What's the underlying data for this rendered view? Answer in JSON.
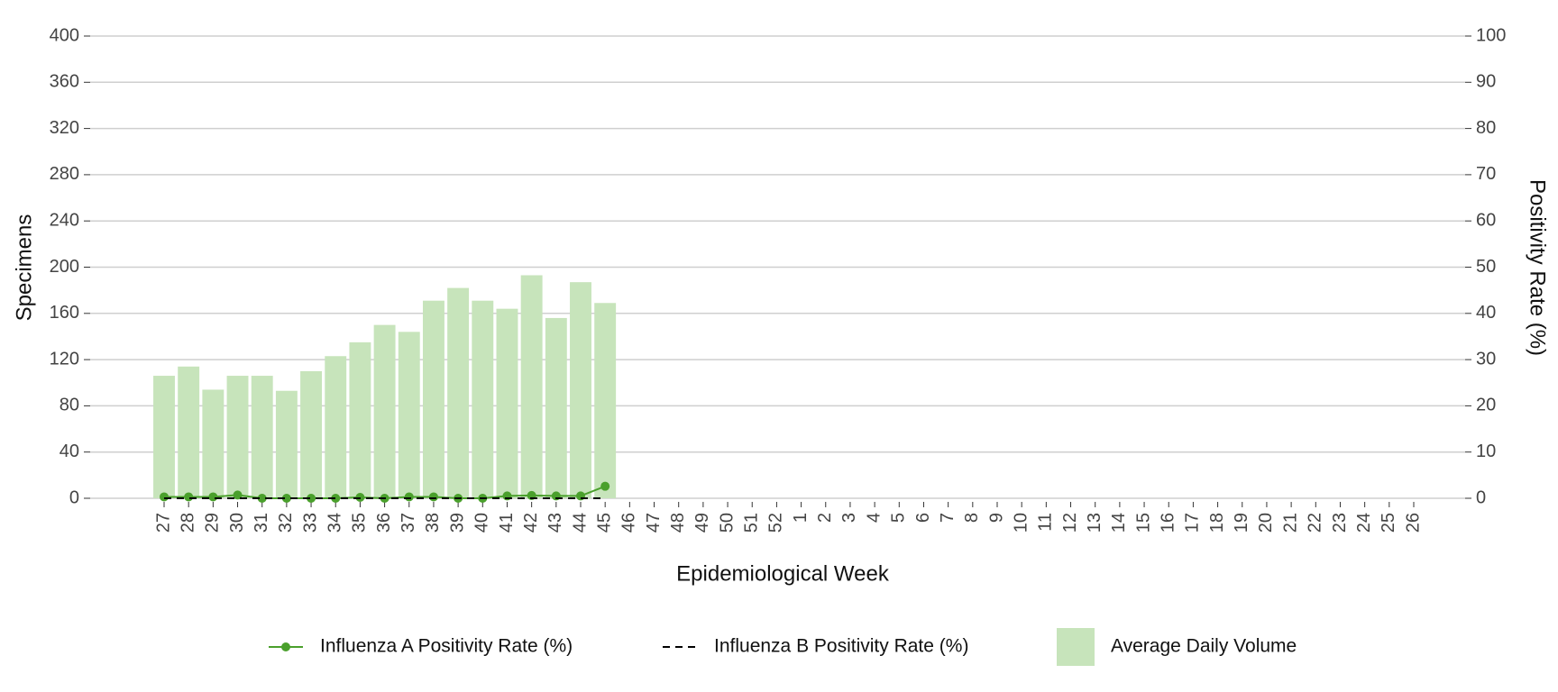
{
  "chart_data": {
    "type": "bar",
    "x_label": "Epidemiological Week",
    "y_label": "Specimens",
    "y2_label": "Positivity Rate (%)",
    "categories": [
      "27",
      "28",
      "29",
      "30",
      "31",
      "32",
      "33",
      "34",
      "35",
      "36",
      "37",
      "38",
      "39",
      "40",
      "41",
      "42",
      "43",
      "44",
      "45",
      "46",
      "47",
      "48",
      "49",
      "50",
      "51",
      "52",
      "1",
      "2",
      "3",
      "4",
      "5",
      "6",
      "7",
      "8",
      "9",
      "10",
      "11",
      "12",
      "13",
      "14",
      "15",
      "16",
      "17",
      "18",
      "19",
      "20",
      "21",
      "22",
      "23",
      "24",
      "25",
      "26"
    ],
    "series": [
      {
        "name": "Influenza A Positivity Rate (%)",
        "type": "line",
        "axis": "y2",
        "color": "#4aa02c",
        "markers": true,
        "values": [
          0.3,
          0.3,
          0.3,
          0.7,
          0,
          0,
          0,
          0,
          0.2,
          0,
          0.3,
          0.3,
          0,
          0,
          0.5,
          0.6,
          0.5,
          0.5,
          2.6,
          null,
          null,
          null,
          null,
          null,
          null,
          null,
          null,
          null,
          null,
          null,
          null,
          null,
          null,
          null,
          null,
          null,
          null,
          null,
          null,
          null,
          null,
          null,
          null,
          null,
          null,
          null,
          null,
          null,
          null,
          null,
          null,
          null
        ]
      },
      {
        "name": "Influenza B Positivity Rate (%)",
        "type": "line",
        "axis": "y2",
        "color": "#000000",
        "dashed": true,
        "values": [
          0,
          0,
          0,
          0,
          0,
          0,
          0,
          0,
          0,
          0,
          0,
          0,
          0,
          0,
          0,
          0,
          0,
          0,
          0,
          null,
          null,
          null,
          null,
          null,
          null,
          null,
          null,
          null,
          null,
          null,
          null,
          null,
          null,
          null,
          null,
          null,
          null,
          null,
          null,
          null,
          null,
          null,
          null,
          null,
          null,
          null,
          null,
          null,
          null,
          null,
          null,
          null
        ]
      },
      {
        "name": "Average Daily Volume",
        "type": "bar",
        "color": "#c7e4bb",
        "values": [
          106,
          114,
          94,
          106,
          106,
          93,
          110,
          123,
          135,
          150,
          144,
          171,
          182,
          171,
          164,
          193,
          156,
          187,
          169,
          null,
          null,
          null,
          null,
          null,
          null,
          null,
          null,
          null,
          null,
          null,
          null,
          null,
          null,
          null,
          null,
          null,
          null,
          null,
          null,
          null,
          null,
          null,
          null,
          null,
          null,
          null,
          null,
          null,
          null,
          null,
          null,
          null
        ]
      }
    ],
    "ylim": [
      0,
      400
    ],
    "yticks": [
      0,
      40,
      80,
      120,
      160,
      200,
      240,
      280,
      320,
      360,
      400
    ],
    "y2lim": [
      0,
      100
    ],
    "y2ticks": [
      0,
      10,
      20,
      30,
      40,
      50,
      60,
      70,
      80,
      90,
      100
    ],
    "grid": true,
    "legend": "bottom"
  }
}
